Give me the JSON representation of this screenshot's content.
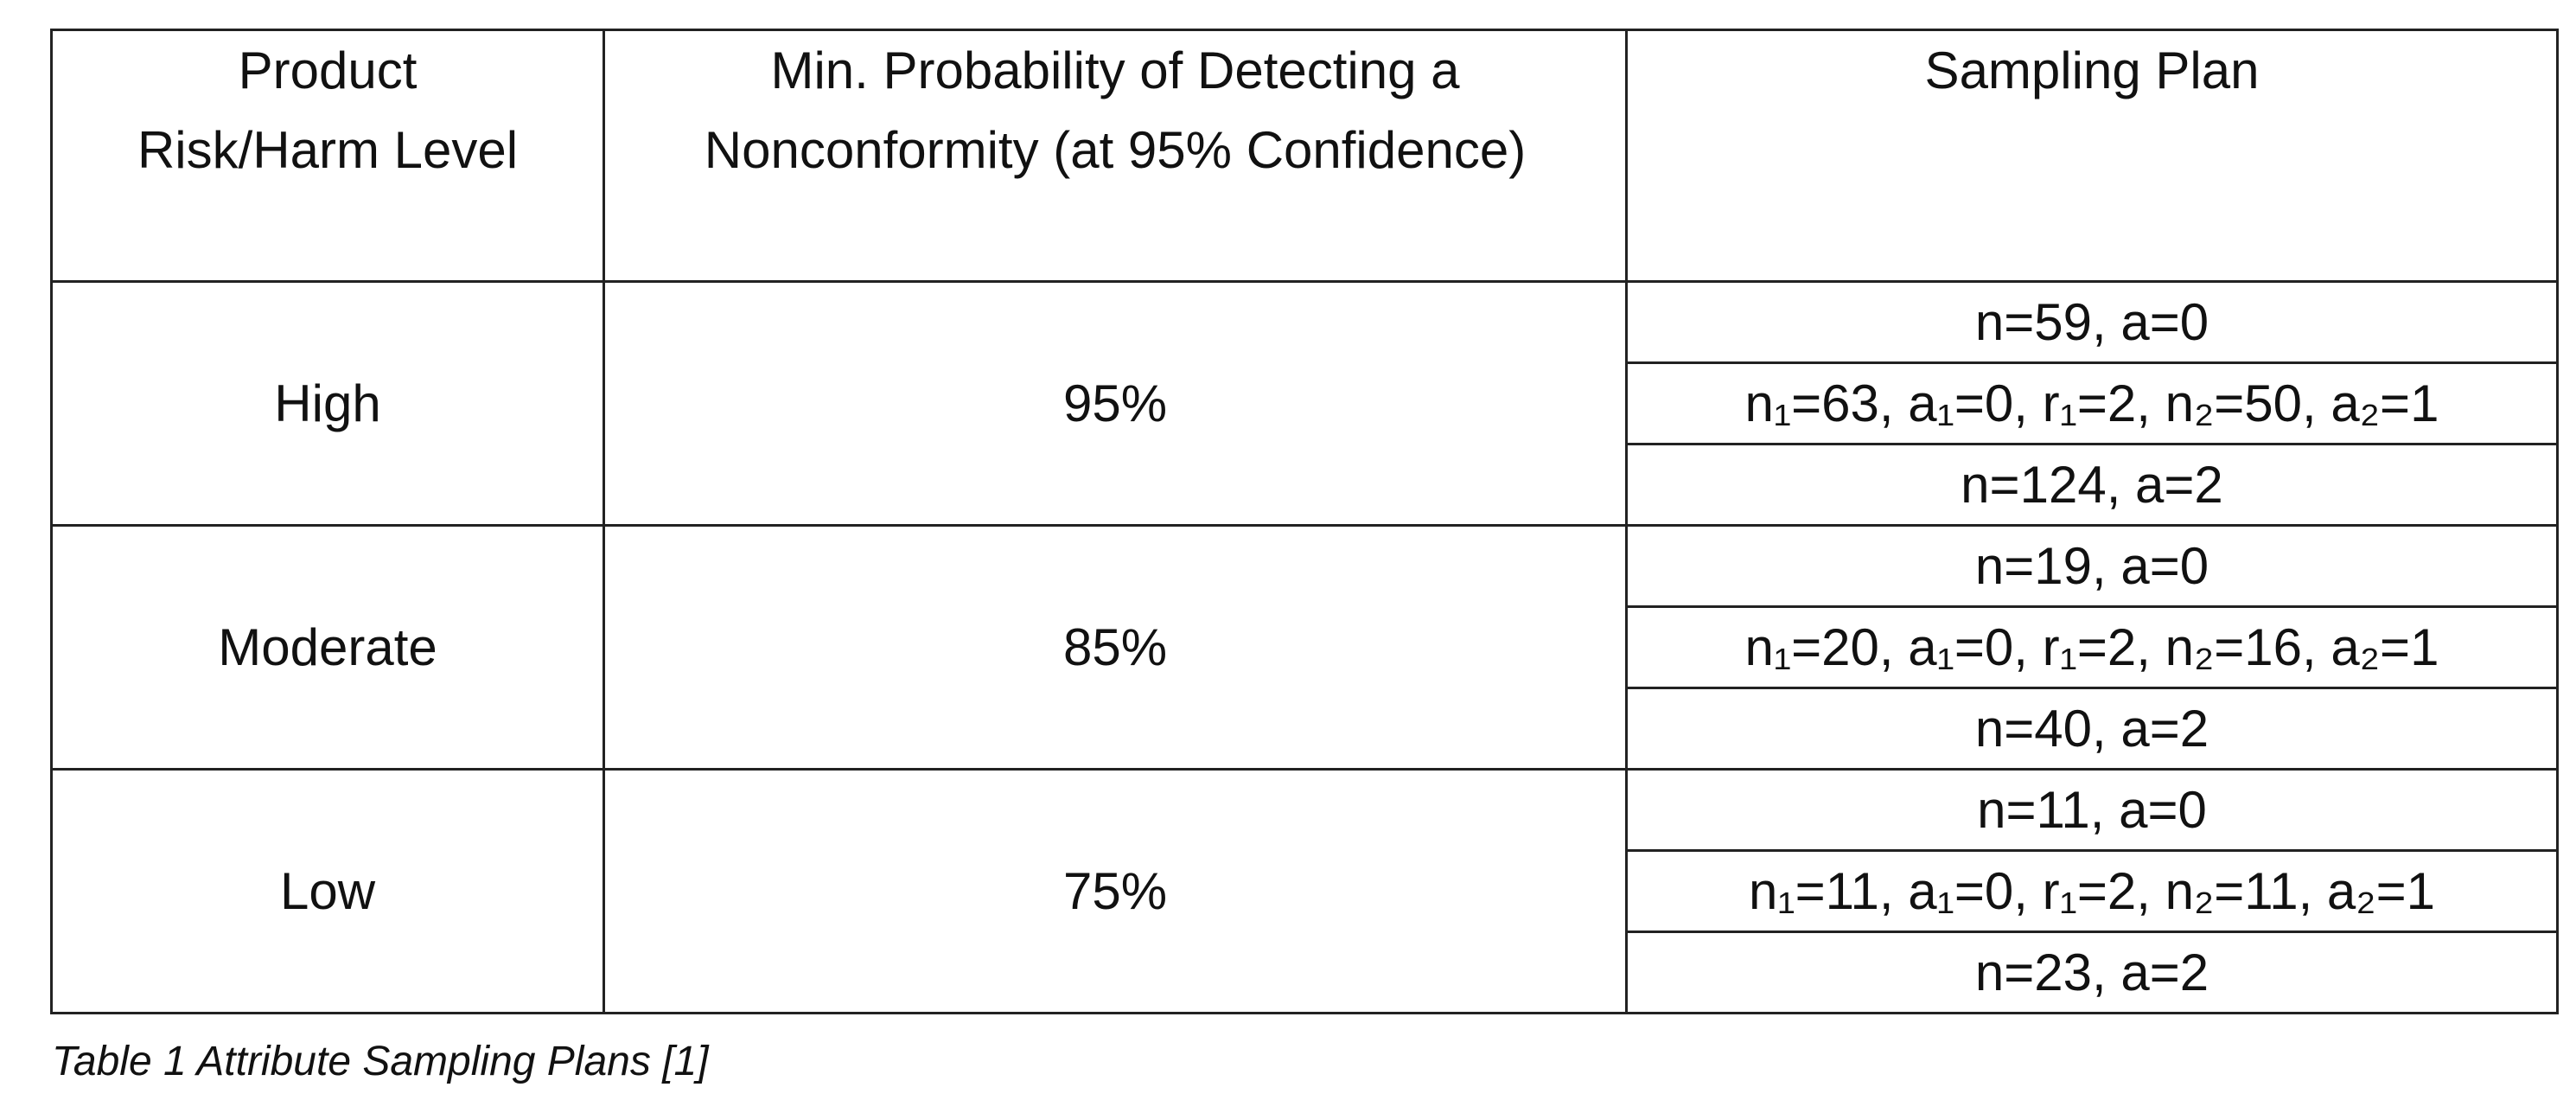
{
  "table": {
    "header": [
      "Product Risk/Harm Level",
      "Min. Probability of Detecting a Nonconformity (at 95% Confidence)",
      "Sampling Plan"
    ],
    "rows": [
      {
        "level": "High",
        "probability": "95%",
        "plans": [
          "n=59, a=0",
          "n₁=63, a₁=0, r₁=2, n₂=50, a₂=1",
          "n=124, a=2"
        ]
      },
      {
        "level": "Moderate",
        "probability": "85%",
        "plans": [
          "n=19, a=0",
          "n₁=20, a₁=0, r₁=2, n₂=16, a₂=1",
          "n=40, a=2"
        ]
      },
      {
        "level": "Low",
        "probability": "75%",
        "plans": [
          "n=11, a=0",
          "n₁=11, a₁=0, r₁=2, n₂=11, a₂=1",
          "n=23, a=2"
        ]
      }
    ]
  },
  "caption": "Table 1 Attribute Sampling Plans [1]"
}
